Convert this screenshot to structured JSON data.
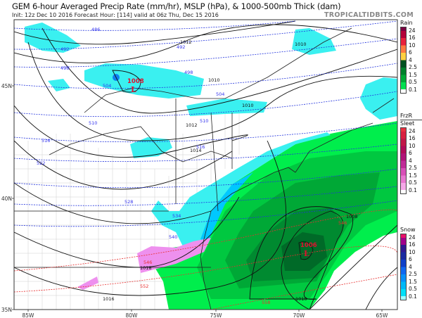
{
  "header": {
    "title": "GEM 6-hour Averaged Precip Rate (mm/hr), MSLP (hPa), & 1000-500mb Thick (dam)",
    "subtitle": "Init: 12z Dec 10 2016   Forecast Hour: [114]   valid at 06z Thu, Dec 15 2016",
    "brand": "TROPICALTIDBITS.COM"
  },
  "axes": {
    "lon_labels": [
      "85W",
      "80W",
      "75W",
      "70W",
      "65W"
    ],
    "lat_labels": [
      "45N",
      "40N",
      "35N"
    ]
  },
  "pressure_centers": [
    {
      "symbol": "L",
      "value": "1008"
    },
    {
      "symbol": "L",
      "value": "1006"
    }
  ],
  "isobar_labels": [
    "1012",
    "1012",
    "1014",
    "1010",
    "1010",
    "1010",
    "1018",
    "1016",
    "1008",
    "1010"
  ],
  "thickness_labels": [
    "486",
    "492",
    "498",
    "504",
    "510",
    "516",
    "522",
    "492",
    "498",
    "510",
    "516",
    "504",
    "528",
    "534",
    "540",
    "546",
    "552",
    "546",
    "558"
  ],
  "legends": {
    "labels": [
      "24",
      "16",
      "10",
      "6",
      "4",
      "2.5",
      "1.5",
      "0.5",
      "0.1"
    ],
    "rain": {
      "title": "Rain",
      "colors": [
        "#7a0040",
        "#b3003a",
        "#e8203c",
        "#ff7a40",
        "#ffd040",
        "#005020",
        "#00802c",
        "#00a836",
        "#00e050",
        "#ffffff"
      ]
    },
    "frzr": {
      "title": "FrzR",
      "title2": "Sleet",
      "colors": [
        "#e83040",
        "#d82040",
        "#c01848",
        "#b00c58",
        "#b01478",
        "#c02c98",
        "#d850b8",
        "#e878d0",
        "#f5a8e8",
        "#ffffff"
      ]
    },
    "snow": {
      "title": "Snow",
      "colors": [
        "#e8106a",
        "#a0008a",
        "#301890",
        "#1a2aa0",
        "#1040c8",
        "#1068f0",
        "#0890f8",
        "#00b8f8",
        "#00e0f8",
        "#a0ffff"
      ]
    }
  },
  "colors": {
    "rain_light": "#00ee4c",
    "snow_light": "#3af0f0",
    "mixed": "#ee90ee",
    "isobar": "#111111",
    "thickness_cold": "#2222dd",
    "thickness_warm": "#e83030",
    "low_center": "#e01030"
  }
}
